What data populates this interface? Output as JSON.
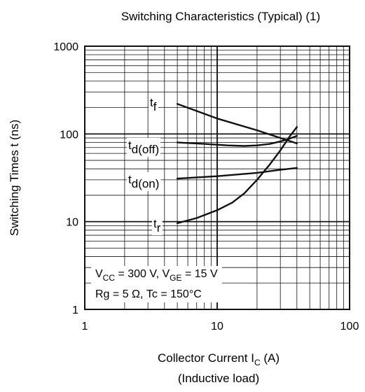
{
  "chart_data": {
    "type": "line",
    "title": "Switching Characteristics (Typical) (1)",
    "xlabel": {
      "main": "Collector Current   I",
      "sub": "C",
      "tail": "  (A)"
    },
    "xlabel_note": "(Inductive load)",
    "ylabel": "Switching Times  t  (ns)",
    "x_scale": "log",
    "y_scale": "log",
    "xlim": [
      1,
      100
    ],
    "ylim": [
      1,
      1000
    ],
    "x_ticks": [
      "1",
      "10",
      "100"
    ],
    "y_ticks": [
      "1",
      "10",
      "100",
      "1000"
    ],
    "grid": true,
    "series": [
      {
        "name_main": "t",
        "name_sub": "f",
        "x": [
          5,
          10,
          20,
          30,
          40
        ],
        "y": [
          220,
          150,
          110,
          90,
          78
        ]
      },
      {
        "name_main": "t",
        "name_sub": "d(off)",
        "x": [
          5,
          8,
          12,
          16,
          20,
          25,
          30,
          35,
          40
        ],
        "y": [
          80,
          77,
          74,
          73,
          74,
          77,
          82,
          88,
          95
        ]
      },
      {
        "name_main": "t",
        "name_sub": "d(on)",
        "x": [
          5,
          10,
          20,
          30,
          40
        ],
        "y": [
          31,
          33,
          36,
          39,
          41
        ]
      },
      {
        "name_main": "t",
        "name_sub": "r",
        "x": [
          5,
          7,
          10,
          13,
          16,
          20,
          25,
          30,
          35,
          40
        ],
        "y": [
          9.6,
          11,
          13.5,
          16.5,
          21,
          30,
          45,
          65,
          92,
          120
        ]
      }
    ],
    "conditions": [
      {
        "parts": [
          {
            "text": "V",
            "sub": false
          },
          {
            "text": "CC",
            "sub": true
          },
          {
            "text": " = 300 V, V",
            "sub": false
          },
          {
            "text": "GE",
            "sub": true
          },
          {
            "text": " = 15 V",
            "sub": false
          }
        ]
      },
      {
        "parts": [
          {
            "text": "Rg = 5 Ω, Tc = 150°C",
            "sub": false
          }
        ]
      }
    ]
  }
}
